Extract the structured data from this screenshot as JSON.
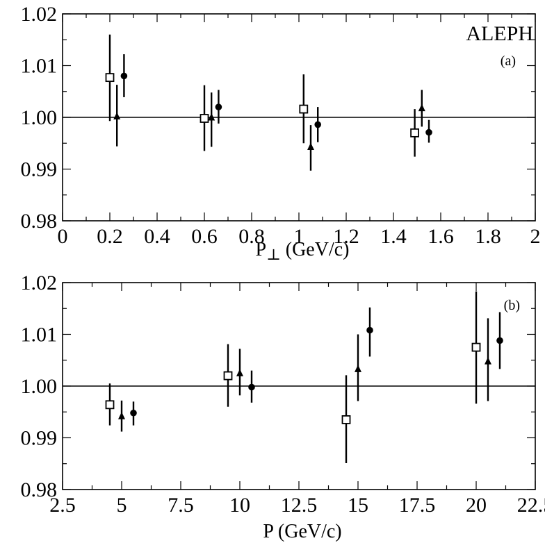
{
  "chart_data": [
    {
      "type": "scatter",
      "panel": "a",
      "xlabel_main": "P",
      "xlabel_sub": "⊥",
      "xlabel_unit": " (GeV/c)",
      "ylabel": "",
      "annotations": [
        "ALEPH",
        "(a)"
      ],
      "xlim": [
        0,
        2
      ],
      "ylim": [
        0.98,
        1.02
      ],
      "xticks": [
        0,
        0.2,
        0.4,
        0.6,
        0.8,
        1,
        1.2,
        1.4,
        1.6,
        1.8,
        2
      ],
      "xtick_labels": [
        "0",
        "0.2",
        "0.4",
        "0.6",
        "0.8",
        "1",
        "1.2",
        "1.4",
        "1.6",
        "1.8",
        "2"
      ],
      "yticks": [
        0.98,
        0.99,
        1.0,
        1.01,
        1.02
      ],
      "ytick_labels": [
        "0.98",
        "0.99",
        "1.00",
        "1.01",
        "1.02"
      ],
      "reference_line": 1.0,
      "grid": false,
      "series": [
        {
          "marker": "open-square",
          "points": [
            {
              "x": 0.2,
              "y": 1.0077,
              "lo": 0.9993,
              "hi": 1.016
            },
            {
              "x": 0.6,
              "y": 0.9998,
              "lo": 0.9935,
              "hi": 1.0062
            },
            {
              "x": 1.02,
              "y": 1.0016,
              "lo": 0.995,
              "hi": 1.0083
            },
            {
              "x": 1.49,
              "y": 0.997,
              "lo": 0.9924,
              "hi": 1.0016
            }
          ]
        },
        {
          "marker": "filled-triangle",
          "points": [
            {
              "x": 0.23,
              "y": 1.0002,
              "lo": 0.9944,
              "hi": 1.0063
            },
            {
              "x": 0.63,
              "y": 1.0,
              "lo": 0.9943,
              "hi": 1.0048
            },
            {
              "x": 1.05,
              "y": 0.9943,
              "lo": 0.9897,
              "hi": 0.9985
            },
            {
              "x": 1.52,
              "y": 1.0018,
              "lo": 0.9982,
              "hi": 1.0053
            }
          ]
        },
        {
          "marker": "filled-circle",
          "points": [
            {
              "x": 0.26,
              "y": 1.008,
              "lo": 1.0039,
              "hi": 1.0122
            },
            {
              "x": 0.66,
              "y": 1.002,
              "lo": 0.9988,
              "hi": 1.0053
            },
            {
              "x": 1.08,
              "y": 0.9986,
              "lo": 0.9952,
              "hi": 1.002
            },
            {
              "x": 1.55,
              "y": 0.9971,
              "lo": 0.9951,
              "hi": 0.9995
            }
          ]
        }
      ]
    },
    {
      "type": "scatter",
      "panel": "b",
      "xlabel_main": "P",
      "xlabel_sub": "",
      "xlabel_unit": " (GeV/c)",
      "ylabel": "",
      "annotations": [
        "(b)"
      ],
      "xlim": [
        2.5,
        22.5
      ],
      "ylim": [
        0.98,
        1.02
      ],
      "xticks": [
        2.5,
        5,
        7.5,
        10,
        12.5,
        15,
        17.5,
        20,
        22.5
      ],
      "xtick_labels": [
        "2.5",
        "5",
        "7.5",
        "10",
        "12.5",
        "15",
        "17.5",
        "20",
        "22.5"
      ],
      "yticks": [
        0.98,
        0.99,
        1.0,
        1.01,
        1.02
      ],
      "ytick_labels": [
        "0.98",
        "0.99",
        "1.00",
        "1.01",
        "1.02"
      ],
      "reference_line": 1.0,
      "grid": false,
      "series": [
        {
          "marker": "open-square",
          "points": [
            {
              "x": 4.5,
              "y": 0.9964,
              "lo": 0.9924,
              "hi": 1.0005
            },
            {
              "x": 9.5,
              "y": 1.002,
              "lo": 0.996,
              "hi": 1.0081
            },
            {
              "x": 14.5,
              "y": 0.9935,
              "lo": 0.9851,
              "hi": 1.0021
            },
            {
              "x": 20,
              "y": 1.0075,
              "lo": 0.9966,
              "hi": 1.0183
            }
          ]
        },
        {
          "marker": "filled-triangle",
          "points": [
            {
              "x": 5,
              "y": 0.9942,
              "lo": 0.9912,
              "hi": 0.9972
            },
            {
              "x": 10,
              "y": 1.0025,
              "lo": 0.9982,
              "hi": 1.0072
            },
            {
              "x": 15,
              "y": 1.0033,
              "lo": 0.9971,
              "hi": 1.01
            },
            {
              "x": 20.5,
              "y": 1.0048,
              "lo": 0.9971,
              "hi": 1.0131
            }
          ]
        },
        {
          "marker": "filled-circle",
          "points": [
            {
              "x": 5.5,
              "y": 0.9948,
              "lo": 0.9924,
              "hi": 0.997
            },
            {
              "x": 10.5,
              "y": 0.9998,
              "lo": 0.9968,
              "hi": 1.003
            },
            {
              "x": 15.5,
              "y": 1.0108,
              "lo": 1.0057,
              "hi": 1.0152
            },
            {
              "x": 21,
              "y": 1.0088,
              "lo": 1.0033,
              "hi": 1.0143
            }
          ]
        }
      ]
    }
  ]
}
